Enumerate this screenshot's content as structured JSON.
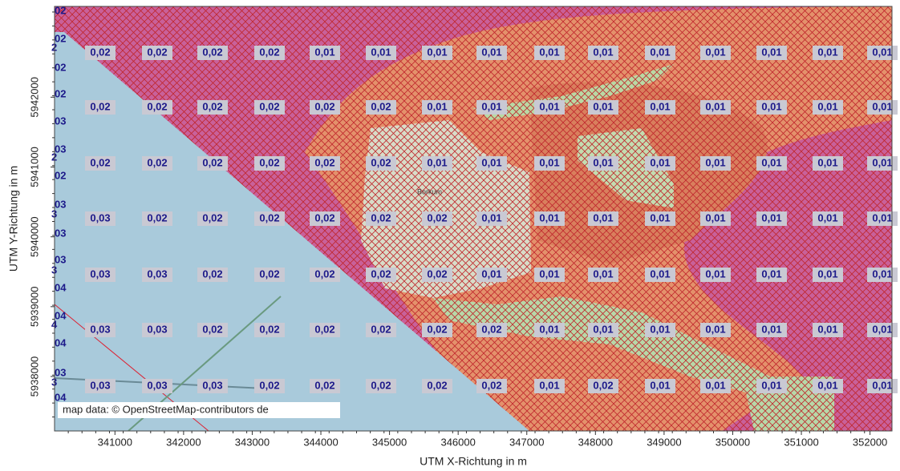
{
  "map": {
    "x_axis_title": "UTM X-Richtung in m",
    "y_axis_title": "UTM Y-Richtung in m",
    "xlim": [
      340120,
      352320
    ],
    "ylim": [
      5937220,
      5943300
    ],
    "xticks": [
      341000,
      342000,
      343000,
      344000,
      345000,
      346000,
      347000,
      348000,
      349000,
      350000,
      351000,
      352000
    ],
    "yticks": [
      5938000,
      5939000,
      5940000,
      5941000,
      5942000
    ],
    "attribution": "map data: © OpenStreetMap-contributors de",
    "place_label": "Borkum",
    "grid_values": [
      [
        "0,02",
        "0,02",
        "0,02",
        "0,02",
        "0,01",
        "0,01",
        "0,01",
        "0,01",
        "0,01",
        "0,01",
        "0,01",
        "0,01",
        "0,01",
        "0,01",
        "0,01"
      ],
      [
        "0,02",
        "0,02",
        "0,02",
        "0,02",
        "0,02",
        "0,02",
        "0,01",
        "0,01",
        "0,01",
        "0,01",
        "0,01",
        "0,01",
        "0,01",
        "0,01",
        "0,01"
      ],
      [
        "0,02",
        "0,02",
        "0,02",
        "0,02",
        "0,02",
        "0,02",
        "0,01",
        "0,01",
        "0,01",
        "0,01",
        "0,01",
        "0,01",
        "0,01",
        "0,01",
        "0,01"
      ],
      [
        "0,03",
        "0,02",
        "0,02",
        "0,02",
        "0,02",
        "0,02",
        "0,02",
        "0,01",
        "0,01",
        "0,01",
        "0,01",
        "0,01",
        "0,01",
        "0,01",
        "0,01"
      ],
      [
        "0,03",
        "0,03",
        "0,02",
        "0,02",
        "0,02",
        "0,02",
        "0,02",
        "0,01",
        "0,01",
        "0,01",
        "0,01",
        "0,01",
        "0,01",
        "0,01",
        "0,01"
      ],
      [
        "0,03",
        "0,03",
        "0,02",
        "0,02",
        "0,02",
        "0,02",
        "0,02",
        "0,02",
        "0,01",
        "0,01",
        "0,01",
        "0,01",
        "0,01",
        "0,01",
        "0,01"
      ],
      [
        "0,03",
        "0,03",
        "0,03",
        "0,02",
        "0,02",
        "0,02",
        "0,02",
        "0,02",
        "0,01",
        "0,02",
        "0,01",
        "0,01",
        "0,01",
        "0,01",
        "0,01"
      ]
    ],
    "edge_labels": [
      "02",
      "02",
      "2",
      "02",
      "02",
      "03",
      "03",
      "2",
      "02",
      "03",
      "3",
      "03",
      "03",
      "3",
      "04",
      "04",
      "4",
      "04",
      "03",
      "3",
      "04"
    ]
  }
}
